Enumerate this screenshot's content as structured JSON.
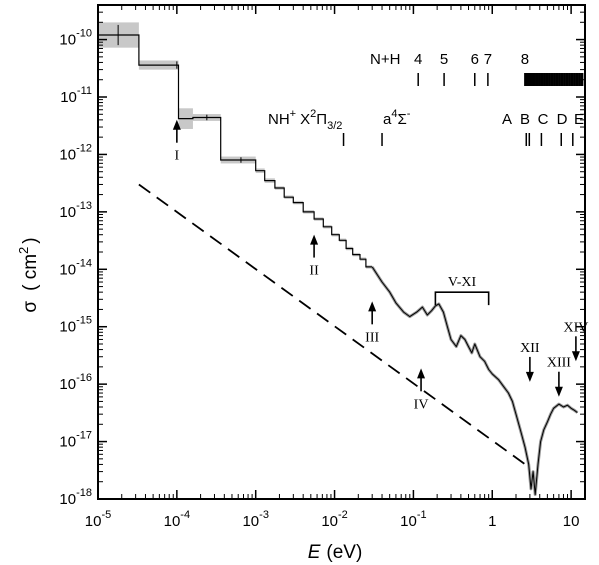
{
  "chart_data": {
    "type": "line",
    "xscale": "log",
    "yscale": "log",
    "xlim": [
      1e-05,
      15
    ],
    "ylim": [
      1e-18,
      4e-10
    ],
    "xlabel_main": "E",
    "xlabel_unit": "(eV)",
    "ylabel": "σ",
    "ylabel_unit_open": "( cm",
    "ylabel_unit_exp": "2",
    "ylabel_unit_close": ")",
    "x_ticks": [
      {
        "value": 1e-05,
        "base": "10",
        "exp": "-5"
      },
      {
        "value": 0.0001,
        "base": "10",
        "exp": "-4"
      },
      {
        "value": 0.001,
        "base": "10",
        "exp": "-3"
      },
      {
        "value": 0.01,
        "base": "10",
        "exp": "-2"
      },
      {
        "value": 0.1,
        "base": "10",
        "exp": "-1"
      },
      {
        "value": 1,
        "base": "1",
        "exp": ""
      },
      {
        "value": 10,
        "base": "10",
        "exp": ""
      }
    ],
    "y_ticks": [
      {
        "value": 1e-10,
        "base": "10",
        "exp": "-10"
      },
      {
        "value": 1e-11,
        "base": "10",
        "exp": "-11"
      },
      {
        "value": 1e-12,
        "base": "10",
        "exp": "-12"
      },
      {
        "value": 1e-13,
        "base": "10",
        "exp": "-13"
      },
      {
        "value": 1e-14,
        "base": "10",
        "exp": "-14"
      },
      {
        "value": 1e-15,
        "base": "10",
        "exp": "-15"
      },
      {
        "value": 1e-16,
        "base": "10",
        "exp": "-16"
      },
      {
        "value": 1e-17,
        "base": "10",
        "exp": "-17"
      },
      {
        "value": 1e-18,
        "base": "10",
        "exp": "-18"
      }
    ],
    "step_series": {
      "edges": [
        1e-05,
        3.3e-05,
        0.000105,
        0.00016,
        0.00036,
        0.001,
        0.0013,
        0.00175,
        0.0023,
        0.003,
        0.004,
        0.0055,
        0.0072,
        0.0092,
        0.0115,
        0.014,
        0.017,
        0.021,
        0.025,
        0.03
      ],
      "values": [
        1.2e-10,
        3.6e-11,
        4.2e-12,
        4.4e-12,
        8e-13,
        5.2e-13,
        3.5e-13,
        2.6e-13,
        1.8e-13,
        1.45e-13,
        1e-13,
        7.5e-14,
        5.5e-14,
        4e-14,
        3.2e-14,
        2.3e-14,
        1.8e-14,
        1.5e-14,
        1.1e-14
      ],
      "error_band_half_decades": [
        0.22,
        0.08,
        0.18,
        0.06,
        0.06,
        0.04,
        0.04,
        0.03,
        0.03,
        0.03,
        0.03,
        0.03,
        0.03,
        0.03,
        0.03,
        0.03,
        0.03,
        0.03,
        0.03
      ],
      "error_bar_x": [
        1.8e-05,
        0.0001,
        0.00024,
        0.00065
      ]
    },
    "curve_series": {
      "x": [
        0.03,
        0.04,
        0.05,
        0.06,
        0.075,
        0.09,
        0.11,
        0.13,
        0.15,
        0.17,
        0.19,
        0.21,
        0.24,
        0.27,
        0.3,
        0.35,
        0.4,
        0.45,
        0.5,
        0.55,
        0.6,
        0.7,
        0.8,
        0.9,
        1.0,
        1.2,
        1.4,
        1.6,
        1.8,
        2.0,
        2.3,
        2.6,
        2.9,
        3.1,
        3.3,
        3.5,
        3.8,
        4.1,
        4.5,
        5.0,
        5.5,
        6.0,
        7.0,
        8.0,
        9.0,
        10.0,
        11.0,
        12.0
      ],
      "y": [
        1.1e-14,
        6e-15,
        4e-15,
        2.6e-15,
        1.8e-15,
        1.5e-15,
        1.8e-15,
        2.2e-15,
        1.6e-15,
        1.9e-15,
        2.3e-15,
        2.5e-15,
        1.8e-15,
        1e-15,
        6e-16,
        4.5e-16,
        7e-16,
        6e-16,
        4.5e-16,
        3.5e-16,
        5e-16,
        3e-16,
        2.5e-16,
        1.8e-16,
        1.5e-16,
        1.2e-16,
        9e-17,
        7e-17,
        5e-17,
        3e-17,
        1.5e-17,
        8e-18,
        4e-18,
        1.5e-18,
        3e-18,
        1.2e-18,
        4e-18,
        1e-17,
        1.6e-17,
        2.2e-17,
        3e-17,
        3.8e-17,
        4.5e-17,
        4e-17,
        4.3e-17,
        3.8e-17,
        3.5e-17,
        3.2e-17
      ]
    },
    "dashed_line": {
      "x": [
        3.3e-05,
        3.0
      ],
      "y": [
        3e-13,
        3.5e-18
      ]
    },
    "arrows_up": [
      {
        "label": "I",
        "x": 0.0001,
        "y": 1.6e-12
      },
      {
        "label": "II",
        "x": 0.0055,
        "y": 1.6e-14
      },
      {
        "label": "III",
        "x": 0.03,
        "y": 1.1e-15
      },
      {
        "label": "IV",
        "x": 0.125,
        "y": 7.5e-17
      }
    ],
    "arrows_down": [
      {
        "label": "XII",
        "x": 3.0,
        "y": 1.05e-16
      },
      {
        "label": "XIII",
        "x": 7.0,
        "y": 5.8e-17
      },
      {
        "label": "XIV",
        "x": 11.5,
        "y": 2.4e-16
      }
    ],
    "bracket": {
      "label": "V-XI",
      "x_start": 0.19,
      "x_end": 0.9,
      "y": 4e-15
    },
    "nh_levels": {
      "label": "N+H",
      "numbered": [
        {
          "label": "4",
          "x": 0.115
        },
        {
          "label": "5",
          "x": 0.245
        },
        {
          "label": "6",
          "x": 0.6
        },
        {
          "label": "7",
          "x": 0.88
        },
        {
          "label": "8",
          "x": 2.6
        }
      ],
      "dense_start": 2.6,
      "dense_end": 14.0
    },
    "nh_plus_levels": {
      "label": "NH",
      "label_sup": "+",
      "state1_pre": "X",
      "state1_sup": "2",
      "state1_mid": "Π",
      "state1_sub": "3/2",
      "state1_x": 0.013,
      "state2_pre": "a",
      "state2_sup": "4",
      "state2_mid": "Σ",
      "state2_sup2": "-",
      "state2_x": 0.04,
      "lettered": [
        {
          "label": "A",
          "x": 2.7
        },
        {
          "label": "B",
          "x": 2.95
        },
        {
          "label": "C",
          "x": 4.2
        },
        {
          "label": "D",
          "x": 7.5
        },
        {
          "label": "E",
          "x": 10.5
        }
      ]
    }
  }
}
